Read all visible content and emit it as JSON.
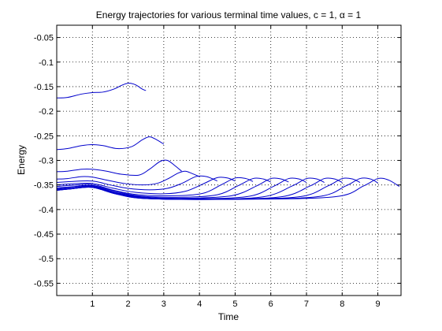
{
  "chart_data": {
    "type": "line",
    "title": "Energy trajectories for various terminal time values, c = 1, α = 1",
    "xlabel": "Time",
    "ylabel": "Energy",
    "xlim": [
      0,
      9.65
    ],
    "ylim": [
      -0.575,
      -0.025
    ],
    "xticks": [
      1,
      2,
      3,
      4,
      5,
      6,
      7,
      8,
      9
    ],
    "xtick_labels": [
      "1",
      "2",
      "3",
      "4",
      "5",
      "6",
      "7",
      "8",
      "9"
    ],
    "yticks": [
      -0.05,
      -0.1,
      -0.15,
      -0.2,
      -0.25,
      -0.3,
      -0.35,
      -0.4,
      -0.45,
      -0.5,
      -0.55
    ],
    "ytick_labels": [
      "-0.05",
      "-0.1",
      "-0.15",
      "-0.2",
      "-0.25",
      "-0.3",
      "-0.35",
      "-0.4",
      "-0.45",
      "-0.5",
      "-0.55"
    ],
    "grid": true,
    "line_color": "#0000cc",
    "series": [
      {
        "x": [
          0,
          0.3,
          0.7,
          1.0,
          1.3,
          1.6,
          1.8,
          2.0,
          2.2,
          2.4,
          2.5
        ],
        "y": [
          -0.173,
          -0.172,
          -0.165,
          -0.162,
          -0.161,
          -0.155,
          -0.148,
          -0.143,
          -0.146,
          -0.155,
          -0.158
        ]
      },
      {
        "x": [
          0,
          0.3,
          0.7,
          1.0,
          1.3,
          1.7,
          2.1,
          2.4,
          2.6,
          2.8,
          3.0
        ],
        "y": [
          -0.278,
          -0.276,
          -0.27,
          -0.268,
          -0.27,
          -0.276,
          -0.272,
          -0.258,
          -0.252,
          -0.258,
          -0.267
        ]
      },
      {
        "x": [
          0,
          0.3,
          0.7,
          1.0,
          1.4,
          1.8,
          2.3,
          2.6,
          2.9,
          3.1,
          3.3,
          3.5
        ],
        "y": [
          -0.323,
          -0.322,
          -0.318,
          -0.318,
          -0.322,
          -0.328,
          -0.33,
          -0.318,
          -0.302,
          -0.3,
          -0.31,
          -0.322
        ]
      },
      {
        "x": [
          0,
          0.3,
          0.7,
          1.0,
          1.4,
          1.9,
          2.4,
          2.8,
          3.1,
          3.4,
          3.6,
          3.8,
          4.0
        ],
        "y": [
          -0.338,
          -0.337,
          -0.333,
          -0.334,
          -0.34,
          -0.347,
          -0.35,
          -0.347,
          -0.338,
          -0.326,
          -0.322,
          -0.327,
          -0.333
        ]
      },
      {
        "x": [
          0,
          0.4,
          1.0,
          1.5,
          2.0,
          2.6,
          3.1,
          3.5,
          3.9,
          4.2,
          4.5
        ],
        "y": [
          -0.345,
          -0.343,
          -0.342,
          -0.35,
          -0.357,
          -0.36,
          -0.357,
          -0.347,
          -0.333,
          -0.333,
          -0.342
        ]
      },
      {
        "x": [
          0,
          0.4,
          1.0,
          1.6,
          2.2,
          3.0,
          3.6,
          4.1,
          4.5,
          4.8,
          5.0
        ],
        "y": [
          -0.35,
          -0.348,
          -0.347,
          -0.357,
          -0.365,
          -0.368,
          -0.363,
          -0.348,
          -0.335,
          -0.336,
          -0.342
        ]
      },
      {
        "x": [
          0,
          0.4,
          1.0,
          1.6,
          2.3,
          3.3,
          4.1,
          4.6,
          5.0,
          5.3,
          5.5
        ],
        "y": [
          -0.353,
          -0.351,
          -0.349,
          -0.361,
          -0.37,
          -0.372,
          -0.367,
          -0.35,
          -0.336,
          -0.337,
          -0.343
        ]
      },
      {
        "x": [
          0,
          0.4,
          1.0,
          1.7,
          2.4,
          3.5,
          4.5,
          5.1,
          5.5,
          5.8,
          6.0
        ],
        "y": [
          -0.356,
          -0.354,
          -0.351,
          -0.364,
          -0.373,
          -0.375,
          -0.37,
          -0.351,
          -0.337,
          -0.338,
          -0.344
        ]
      },
      {
        "x": [
          0,
          0.4,
          1.0,
          1.7,
          2.5,
          3.6,
          4.9,
          5.6,
          6.0,
          6.3,
          6.5
        ],
        "y": [
          -0.358,
          -0.355,
          -0.352,
          -0.366,
          -0.375,
          -0.377,
          -0.372,
          -0.352,
          -0.337,
          -0.338,
          -0.344
        ]
      },
      {
        "x": [
          0,
          0.4,
          1.0,
          1.7,
          2.6,
          4.0,
          5.4,
          6.1,
          6.5,
          6.8,
          7.0
        ],
        "y": [
          -0.359,
          -0.357,
          -0.353,
          -0.367,
          -0.376,
          -0.378,
          -0.373,
          -0.352,
          -0.337,
          -0.338,
          -0.345
        ]
      },
      {
        "x": [
          0,
          0.4,
          1.0,
          1.7,
          2.6,
          4.2,
          5.8,
          6.6,
          7.0,
          7.3,
          7.5
        ],
        "y": [
          -0.36,
          -0.357,
          -0.354,
          -0.368,
          -0.377,
          -0.379,
          -0.374,
          -0.352,
          -0.337,
          -0.338,
          -0.345
        ]
      },
      {
        "x": [
          0,
          0.4,
          1.0,
          1.7,
          2.6,
          4.5,
          6.3,
          7.1,
          7.5,
          7.8,
          8.0
        ],
        "y": [
          -0.36,
          -0.358,
          -0.354,
          -0.368,
          -0.377,
          -0.379,
          -0.374,
          -0.352,
          -0.337,
          -0.338,
          -0.345
        ]
      },
      {
        "x": [
          0,
          0.4,
          1.0,
          1.7,
          2.6,
          4.8,
          6.8,
          7.6,
          8.0,
          8.3,
          8.5
        ],
        "y": [
          -0.361,
          -0.358,
          -0.355,
          -0.369,
          -0.378,
          -0.379,
          -0.374,
          -0.352,
          -0.337,
          -0.338,
          -0.345
        ]
      },
      {
        "x": [
          0,
          0.4,
          1.0,
          1.7,
          2.6,
          5.0,
          7.3,
          8.1,
          8.5,
          8.8,
          9.0
        ],
        "y": [
          -0.361,
          -0.358,
          -0.355,
          -0.369,
          -0.378,
          -0.379,
          -0.374,
          -0.352,
          -0.337,
          -0.338,
          -0.346
        ]
      },
      {
        "x": [
          0,
          0.4,
          1.0,
          1.7,
          2.6,
          5.3,
          7.8,
          8.6,
          9.0,
          9.3,
          9.6
        ],
        "y": [
          -0.361,
          -0.358,
          -0.355,
          -0.369,
          -0.378,
          -0.379,
          -0.374,
          -0.352,
          -0.337,
          -0.34,
          -0.353
        ]
      }
    ]
  }
}
